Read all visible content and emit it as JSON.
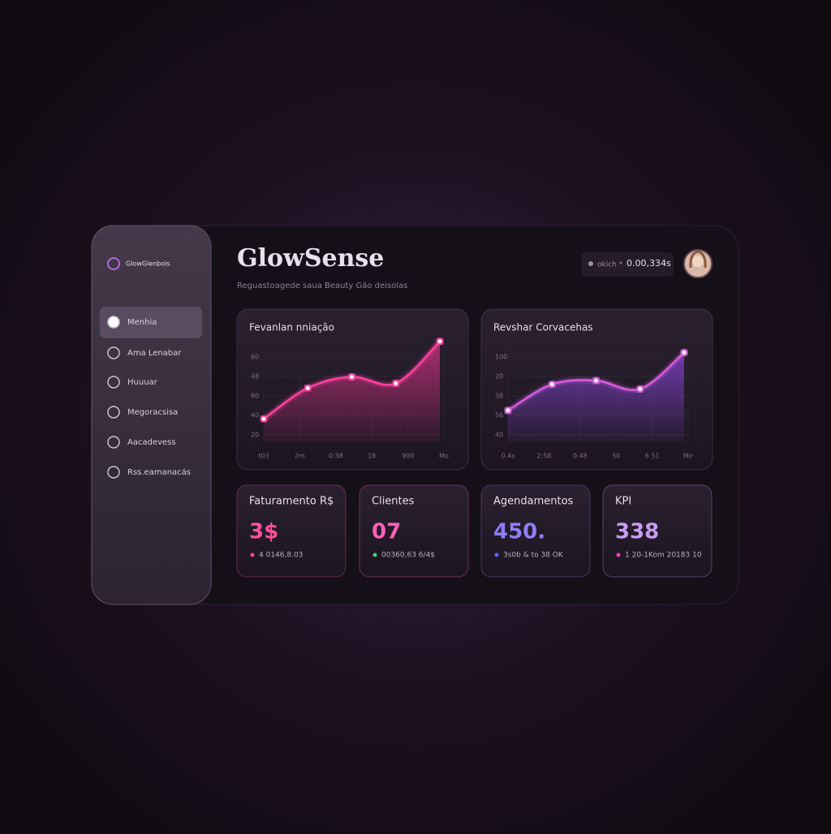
{
  "sidebar": {
    "brand": "GlowGlenbois",
    "nav": [
      "Menhia",
      "Ama Lenabar",
      "Huuuar",
      "Megoracsisa",
      "Aacadevess",
      "Rss.eamanacás"
    ]
  },
  "header": {
    "title": "GlowSense",
    "subtitle": "Reguastoagede saua Beauty Gão deisolas",
    "search_label": "okich *",
    "search_value": "0.00,334s"
  },
  "charts": [
    {
      "type": "line",
      "title": "Fevanlan nniação",
      "y_labels": [
        "60",
        "48",
        "80",
        "40",
        "20"
      ],
      "x_labels": [
        "t03",
        "2m",
        "0:38",
        "18",
        "900",
        "Mo"
      ],
      "ylim": [
        0,
        100
      ],
      "values": [
        25,
        58,
        70,
        63,
        108
      ],
      "color": "#ff3fa0",
      "fill": "#c0307a"
    },
    {
      "type": "line",
      "title": "Revshar Corvacehas",
      "y_labels": [
        "100",
        "20",
        "38",
        "56",
        "40"
      ],
      "x_labels": [
        "0.4s",
        "2:58",
        "0.48",
        "50",
        "6 51",
        "Mir"
      ],
      "ylim": [
        0,
        100
      ],
      "values": [
        34,
        62,
        66,
        57,
        96
      ],
      "color": "#d85ce0",
      "fill": "#7a3fc0"
    }
  ],
  "kpis": [
    {
      "title": "Faturamento R$",
      "value": "3$",
      "detail": "4 0146,8.03",
      "color": "#ff4f9a",
      "dot": "#ff3f90"
    },
    {
      "title": "Clientes",
      "value": "07",
      "detail": "00360,63 6/4$",
      "color": "#ff5fb8",
      "dot": "#3fd08a"
    },
    {
      "title": "Agendamentos",
      "value": "450.",
      "detail": "3s0b & to 38 OK",
      "color": "#8c7ef5",
      "dot": "#4f6cff"
    },
    {
      "title": "KPI",
      "value": "338",
      "detail": "1 20-1Kom 20183 10",
      "color": "#c89cf2",
      "dot": "#ff3fc0"
    }
  ]
}
